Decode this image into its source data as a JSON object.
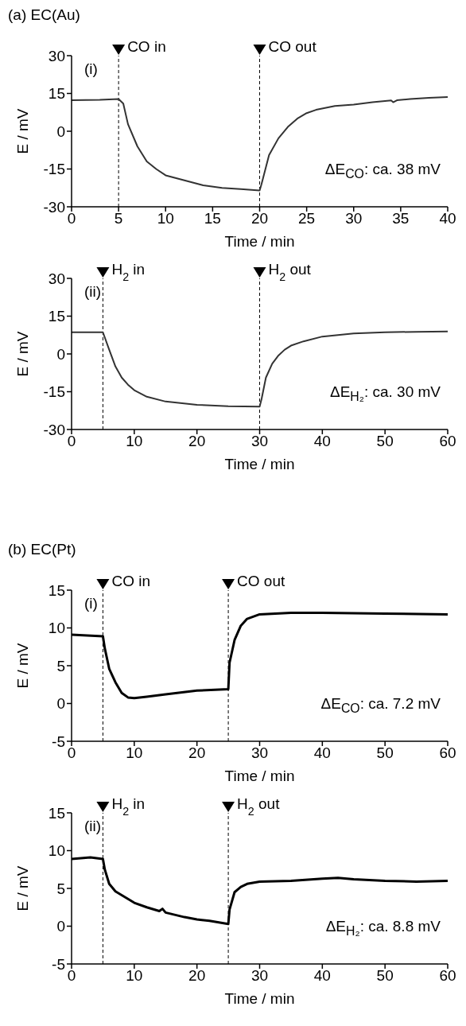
{
  "chart_data": [
    {
      "type": "line",
      "title": "(a) EC(Au)",
      "xlabel": "Time / min",
      "ylabel": "E / mV",
      "xlim": [
        0,
        40
      ],
      "xticks": [
        0,
        5,
        10,
        15,
        20,
        25,
        30,
        35,
        40
      ],
      "ylim": [
        -30,
        30
      ],
      "yticks": [
        -30,
        -15,
        0,
        15,
        30
      ],
      "series": [
        {
          "color": "#333333",
          "x": [
            0,
            3,
            5,
            5.5,
            6,
            7,
            8,
            9,
            10,
            12,
            14,
            16,
            18,
            20,
            20.2,
            21,
            22,
            23,
            24,
            25,
            26,
            28,
            30,
            32,
            34,
            34.2,
            34.6,
            36,
            38,
            40
          ],
          "values": [
            12.3,
            12.5,
            12.8,
            11,
            2.8,
            -6,
            -12,
            -15,
            -17.5,
            -19.5,
            -21.5,
            -22.5,
            -23,
            -23.5,
            -21,
            -9.5,
            -2.8,
            1.7,
            5,
            7.2,
            8.5,
            10,
            10.6,
            11.5,
            12.2,
            11.5,
            12.3,
            12.8,
            13.3,
            13.6
          ]
        }
      ],
      "ref_lines": [
        {
          "axis": "x",
          "value": 5,
          "label": "CO in",
          "line_style": "dashed"
        },
        {
          "axis": "x",
          "value": 20,
          "label": "CO out",
          "line_style": "dashed"
        }
      ],
      "annotations": [
        "(i)",
        "ΔE$_{CO}$: ca. 38 mV"
      ]
    },
    {
      "type": "line",
      "xlabel": "Time / min",
      "ylabel": "E / mV",
      "xlim": [
        0,
        60
      ],
      "xticks": [
        0,
        10,
        20,
        30,
        40,
        50,
        60
      ],
      "ylim": [
        -30,
        30
      ],
      "yticks": [
        -30,
        -15,
        0,
        15,
        30
      ],
      "series": [
        {
          "color": "#333333",
          "x": [
            0,
            5,
            6,
            7,
            8,
            9,
            10,
            12,
            15,
            20,
            25,
            30,
            30.3,
            31,
            32,
            33,
            34,
            35,
            37,
            40,
            45,
            50,
            55,
            60
          ],
          "values": [
            8.6,
            8.6,
            1.7,
            -5,
            -9.4,
            -12.2,
            -14.4,
            -17,
            -18.9,
            -20.2,
            -20.8,
            -20.9,
            -18,
            -9.4,
            -3.9,
            -0.6,
            1.7,
            3.3,
            5,
            6.9,
            8.1,
            8.6,
            8.8,
            8.9
          ]
        }
      ],
      "ref_lines": [
        {
          "axis": "x",
          "value": 5,
          "label": "H$_{2}$ in",
          "line_style": "dashed"
        },
        {
          "axis": "x",
          "value": 30,
          "label": "H$_{2}$ out",
          "line_style": "dashed"
        }
      ],
      "annotations": [
        "(ii)",
        "ΔE$_{H₂}$: ca. 30 mV"
      ]
    },
    {
      "type": "line",
      "title": "(b) EC(Pt)",
      "xlabel": "Time / min",
      "ylabel": "E / mV",
      "xlim": [
        0,
        60
      ],
      "xticks": [
        0,
        10,
        20,
        30,
        40,
        50,
        60
      ],
      "ylim": [
        -5,
        15
      ],
      "yticks": [
        -5,
        0,
        5,
        10,
        15
      ],
      "series": [
        {
          "color": "#000000",
          "x": [
            0,
            5,
            5.3,
            6,
            7,
            8,
            9,
            10,
            12,
            15,
            20,
            25,
            25.2,
            26,
            27,
            28,
            30,
            35,
            40,
            50,
            60
          ],
          "values": [
            9.1,
            8.9,
            7.3,
            4.6,
            2.8,
            1.4,
            0.8,
            0.7,
            0.9,
            1.2,
            1.7,
            1.9,
            5.4,
            8.4,
            10.3,
            11.2,
            11.8,
            12,
            12,
            11.9,
            11.8
          ]
        }
      ],
      "ref_lines": [
        {
          "axis": "x",
          "value": 5,
          "label": "CO in",
          "line_style": "dashed"
        },
        {
          "axis": "x",
          "value": 25,
          "label": "CO out",
          "line_style": "dashed"
        }
      ],
      "annotations": [
        "(i)",
        "ΔE$_{CO}$: ca. 7.2 mV"
      ]
    },
    {
      "type": "line",
      "xlabel": "Time / min",
      "ylabel": "E / mV",
      "xlim": [
        0,
        60
      ],
      "xticks": [
        0,
        10,
        20,
        30,
        40,
        50,
        60
      ],
      "ylim": [
        -5,
        15
      ],
      "yticks": [
        -5,
        0,
        5,
        10,
        15
      ],
      "series": [
        {
          "color": "#000000",
          "x": [
            0,
            3,
            5,
            5.3,
            6,
            7,
            8,
            10,
            12,
            14,
            14.5,
            15,
            18,
            20,
            22,
            25,
            25.2,
            26,
            27,
            28,
            30,
            35,
            40,
            42.5,
            45,
            50,
            55,
            60
          ],
          "values": [
            8.9,
            9.1,
            8.9,
            7.5,
            5.6,
            4.6,
            4.1,
            3.1,
            2.5,
            2,
            2.3,
            1.8,
            1.2,
            0.9,
            0.7,
            0.3,
            2.2,
            4.5,
            5.2,
            5.6,
            5.9,
            6,
            6.3,
            6.4,
            6.2,
            6,
            5.9,
            6
          ]
        }
      ],
      "ref_lines": [
        {
          "axis": "x",
          "value": 5,
          "label": "H$_{2}$ in",
          "line_style": "dashed"
        },
        {
          "axis": "x",
          "value": 25,
          "label": "H$_{2}$ out",
          "line_style": "dashed"
        }
      ],
      "annotations": [
        "(ii)",
        "ΔE$_{H₂}$: ca. 8.8 mV"
      ]
    }
  ]
}
